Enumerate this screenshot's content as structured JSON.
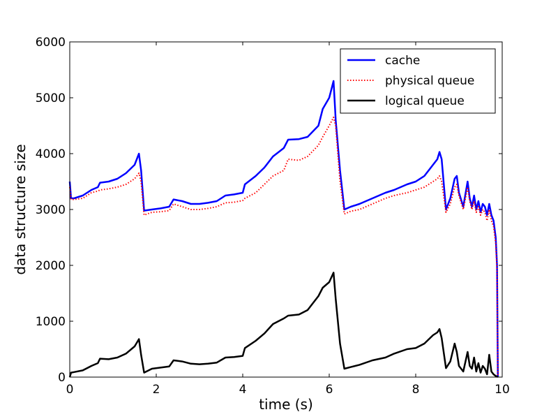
{
  "chart_data": {
    "type": "line",
    "title": "",
    "xlabel": "time (s)",
    "ylabel": "data structure size",
    "xlim": [
      0,
      10
    ],
    "ylim": [
      0,
      6000
    ],
    "x_ticks": [
      0,
      2,
      4,
      6,
      8,
      10
    ],
    "y_ticks": [
      0,
      1000,
      2000,
      3000,
      4000,
      5000,
      6000
    ],
    "x_tick_labels": [
      "0",
      "2",
      "4",
      "6",
      "8",
      "10"
    ],
    "y_tick_labels": [
      "0",
      "1000",
      "2000",
      "3000",
      "4000",
      "5000",
      "6000"
    ],
    "grid": false,
    "legend_position": "top-right",
    "series": [
      {
        "name": "cache",
        "color": "#0000ff",
        "style": "solid",
        "x": [
          0.0,
          0.03,
          0.1,
          0.3,
          0.5,
          0.65,
          0.7,
          0.9,
          1.1,
          1.3,
          1.5,
          1.6,
          1.65,
          1.72,
          1.9,
          2.1,
          2.3,
          2.4,
          2.6,
          2.8,
          3.0,
          3.2,
          3.4,
          3.6,
          3.8,
          4.0,
          4.05,
          4.3,
          4.5,
          4.7,
          4.95,
          5.05,
          5.3,
          5.5,
          5.75,
          5.85,
          6.0,
          6.1,
          6.15,
          6.25,
          6.35,
          6.5,
          6.7,
          7.0,
          7.3,
          7.5,
          7.8,
          8.0,
          8.2,
          8.4,
          8.5,
          8.55,
          8.6,
          8.7,
          8.8,
          8.9,
          8.95,
          9.0,
          9.1,
          9.2,
          9.25,
          9.3,
          9.35,
          9.4,
          9.45,
          9.5,
          9.55,
          9.6,
          9.65,
          9.7,
          9.75,
          9.8,
          9.85,
          9.88,
          9.9
        ],
        "y": [
          3500,
          3200,
          3200,
          3250,
          3350,
          3400,
          3480,
          3500,
          3550,
          3650,
          3800,
          4000,
          3700,
          2980,
          3000,
          3020,
          3050,
          3180,
          3150,
          3100,
          3100,
          3120,
          3150,
          3250,
          3270,
          3300,
          3450,
          3600,
          3750,
          3950,
          4100,
          4250,
          4260,
          4300,
          4500,
          4800,
          5000,
          5300,
          4600,
          3700,
          3000,
          3050,
          3100,
          3200,
          3300,
          3350,
          3450,
          3500,
          3600,
          3800,
          3900,
          4030,
          3900,
          3000,
          3200,
          3550,
          3600,
          3300,
          3050,
          3500,
          3200,
          3050,
          3250,
          3000,
          3150,
          2950,
          3100,
          3050,
          2900,
          3100,
          2900,
          2800,
          2500,
          2000,
          0
        ]
      },
      {
        "name": "physical queue",
        "color": "#ff0000",
        "style": "dotted",
        "x": [
          0.0,
          0.03,
          0.1,
          0.3,
          0.5,
          0.65,
          0.7,
          0.9,
          1.1,
          1.3,
          1.5,
          1.6,
          1.65,
          1.72,
          1.9,
          2.1,
          2.3,
          2.4,
          2.6,
          2.8,
          3.0,
          3.2,
          3.4,
          3.6,
          3.8,
          4.0,
          4.05,
          4.3,
          4.5,
          4.7,
          4.95,
          5.05,
          5.3,
          5.5,
          5.75,
          5.85,
          6.0,
          6.1,
          6.15,
          6.25,
          6.35,
          6.5,
          6.7,
          7.0,
          7.3,
          7.5,
          7.8,
          8.0,
          8.2,
          8.4,
          8.5,
          8.55,
          8.6,
          8.7,
          8.8,
          8.9,
          8.95,
          9.0,
          9.1,
          9.2,
          9.25,
          9.3,
          9.35,
          9.4,
          9.45,
          9.5,
          9.55,
          9.6,
          9.65,
          9.7,
          9.75,
          9.8,
          9.85,
          9.88,
          9.9
        ],
        "y": [
          3400,
          3180,
          3180,
          3200,
          3300,
          3330,
          3350,
          3370,
          3400,
          3450,
          3550,
          3650,
          3500,
          2900,
          2950,
          2960,
          2980,
          3100,
          3050,
          3000,
          3000,
          3020,
          3050,
          3120,
          3130,
          3160,
          3200,
          3300,
          3450,
          3600,
          3700,
          3900,
          3880,
          3950,
          4150,
          4300,
          4500,
          4650,
          4500,
          3500,
          2920,
          2970,
          3000,
          3100,
          3200,
          3250,
          3300,
          3350,
          3400,
          3500,
          3550,
          3600,
          3500,
          2950,
          3100,
          3400,
          3450,
          3250,
          3000,
          3400,
          3150,
          3000,
          3150,
          2950,
          3050,
          2900,
          3000,
          2950,
          2800,
          3000,
          2800,
          2700,
          2400,
          1900,
          0
        ]
      },
      {
        "name": "logical queue",
        "color": "#000000",
        "style": "solid",
        "x": [
          0.0,
          0.03,
          0.1,
          0.3,
          0.5,
          0.65,
          0.7,
          0.9,
          1.1,
          1.3,
          1.5,
          1.6,
          1.65,
          1.72,
          1.9,
          2.1,
          2.3,
          2.4,
          2.6,
          2.8,
          3.0,
          3.2,
          3.4,
          3.6,
          3.8,
          4.0,
          4.05,
          4.3,
          4.5,
          4.7,
          4.95,
          5.05,
          5.3,
          5.5,
          5.75,
          5.85,
          6.0,
          6.1,
          6.15,
          6.25,
          6.35,
          6.5,
          6.7,
          7.0,
          7.3,
          7.5,
          7.8,
          8.0,
          8.2,
          8.4,
          8.5,
          8.55,
          8.6,
          8.7,
          8.8,
          8.9,
          8.95,
          9.0,
          9.1,
          9.2,
          9.25,
          9.3,
          9.35,
          9.4,
          9.45,
          9.5,
          9.55,
          9.6,
          9.65,
          9.7,
          9.75,
          9.8,
          9.85,
          9.88,
          9.9
        ],
        "y": [
          0,
          80,
          90,
          120,
          200,
          250,
          330,
          320,
          350,
          420,
          550,
          680,
          400,
          80,
          150,
          170,
          190,
          300,
          280,
          240,
          230,
          240,
          260,
          350,
          360,
          380,
          520,
          650,
          780,
          950,
          1050,
          1100,
          1120,
          1200,
          1450,
          1600,
          1700,
          1870,
          1400,
          600,
          150,
          180,
          220,
          300,
          350,
          420,
          500,
          520,
          600,
          750,
          800,
          860,
          700,
          160,
          280,
          600,
          450,
          200,
          100,
          450,
          200,
          150,
          350,
          100,
          250,
          80,
          200,
          150,
          50,
          400,
          100,
          50,
          20,
          10,
          0
        ]
      }
    ]
  }
}
